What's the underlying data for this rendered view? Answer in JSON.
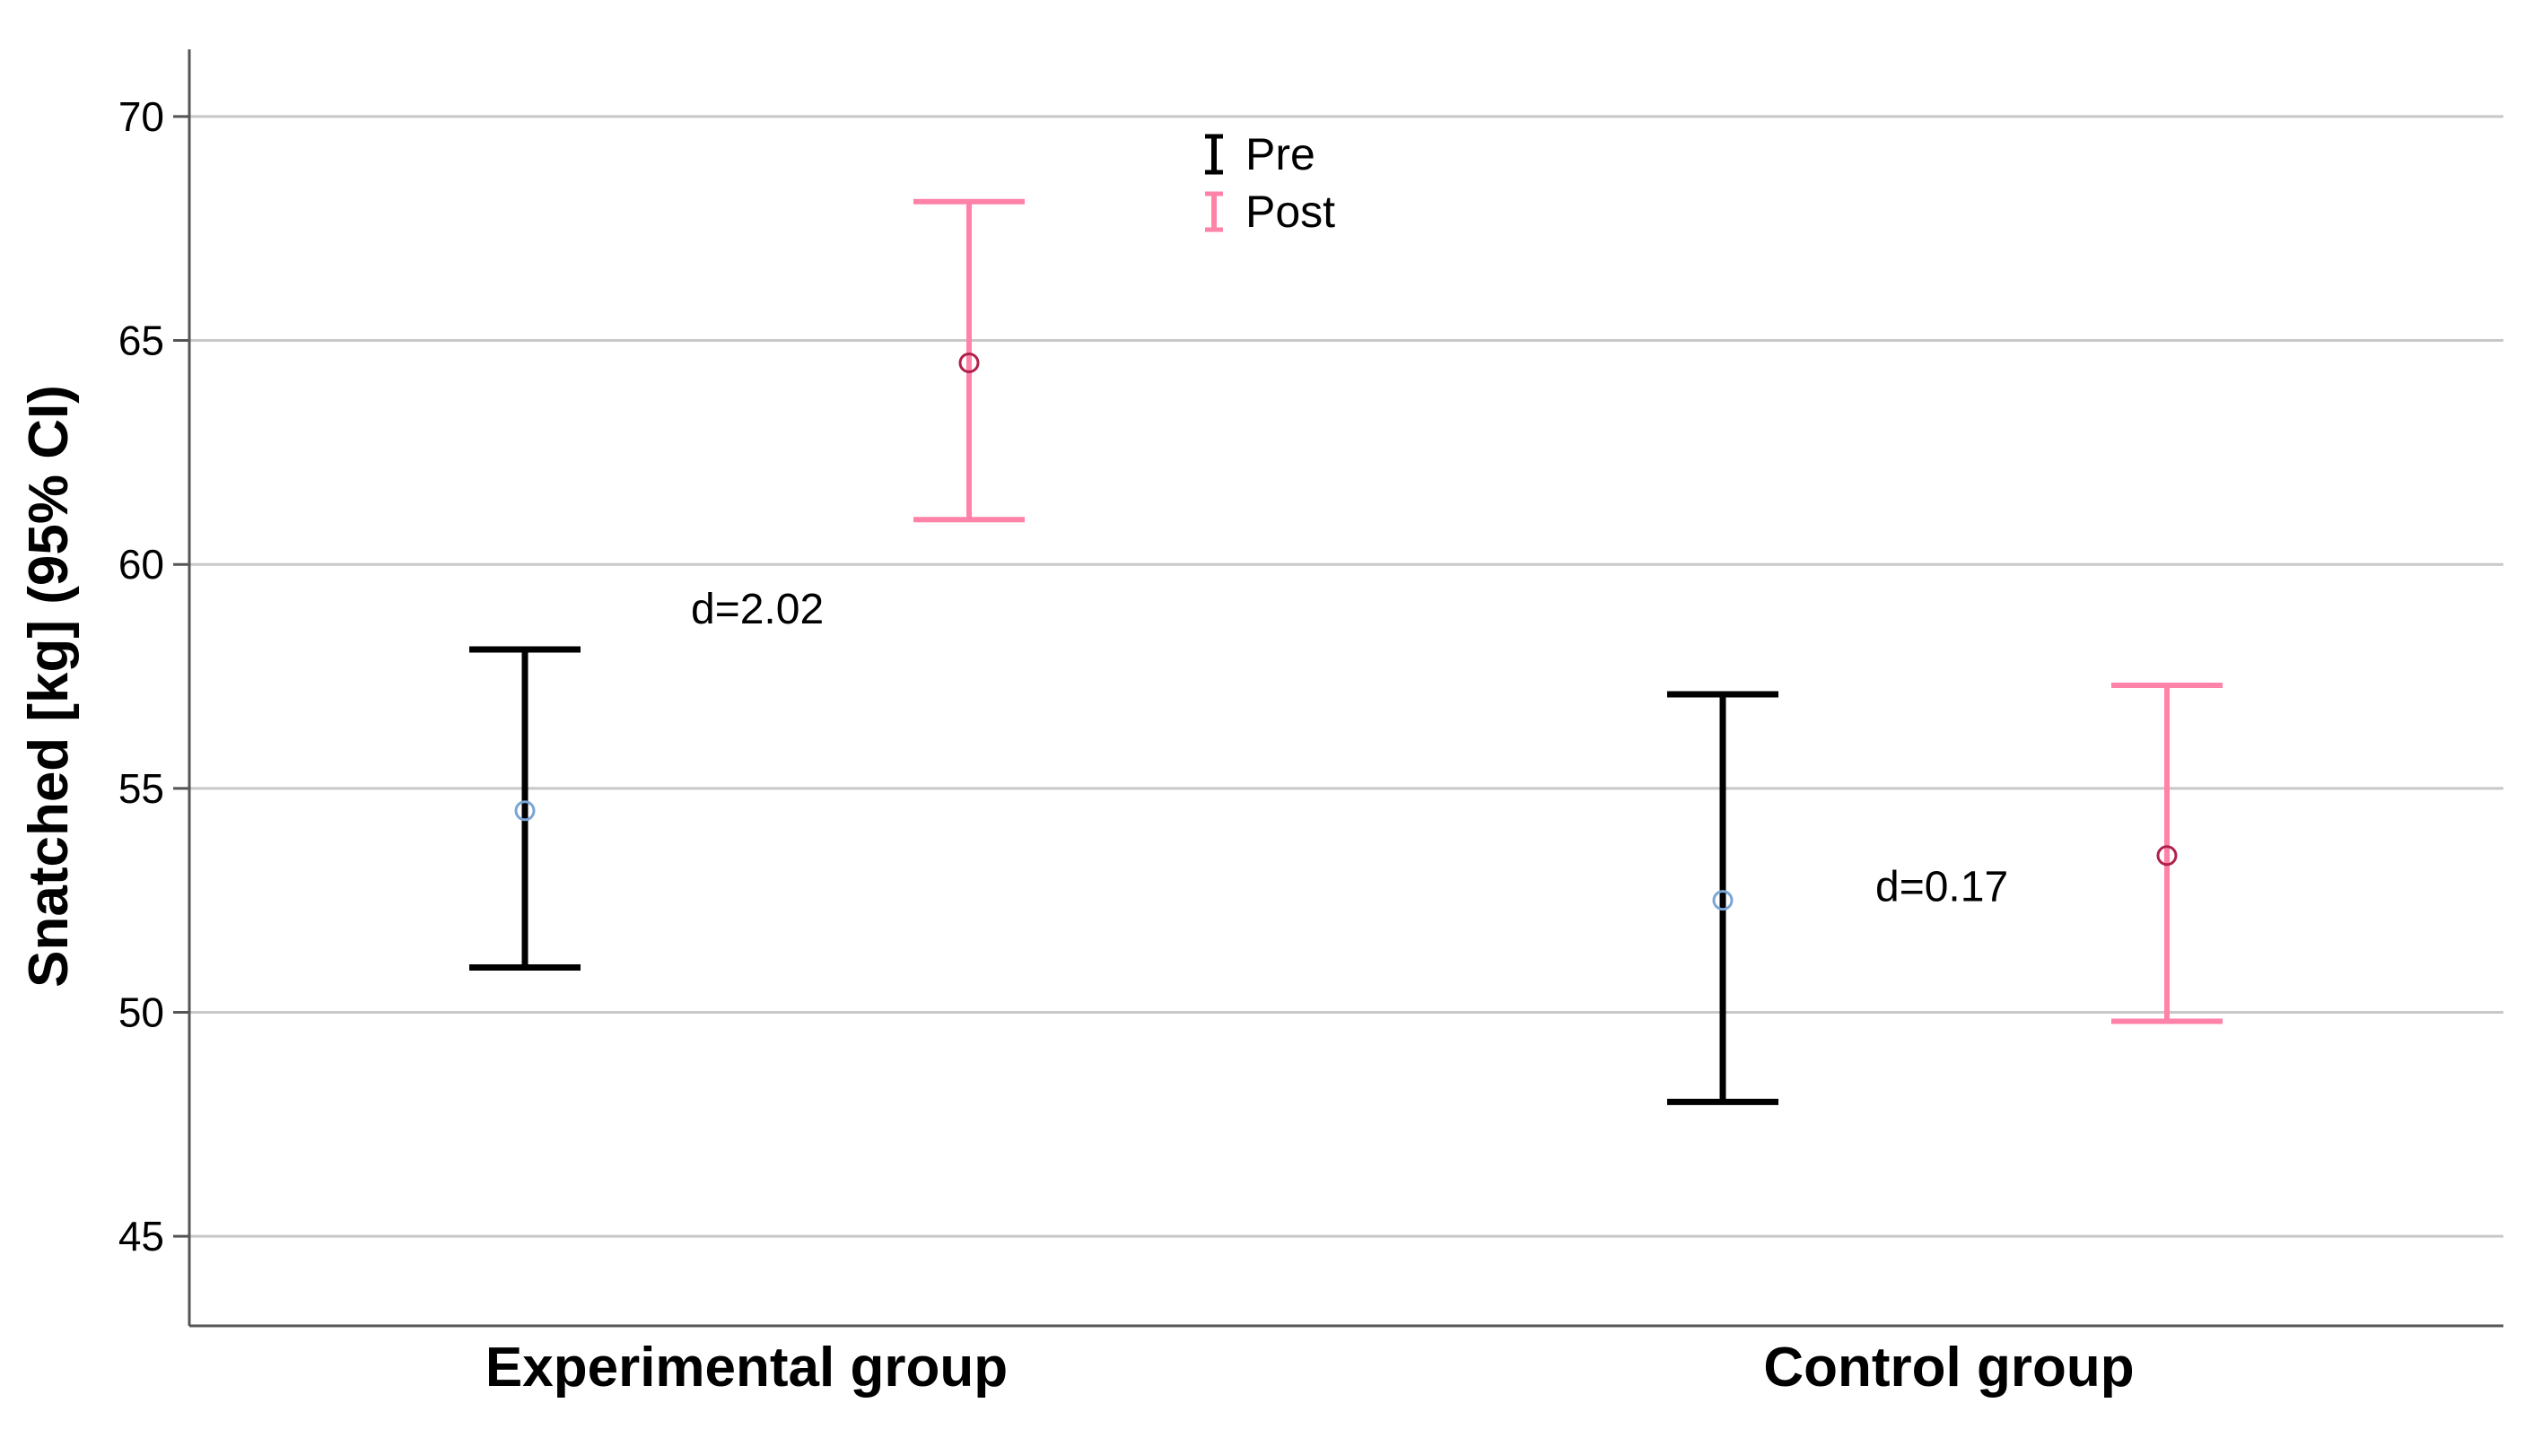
{
  "chart_data": {
    "type": "errorbar",
    "ylabel": "Snatched [kg] (95% CI)",
    "xlabel": "",
    "ylim": [
      43,
      71.5
    ],
    "yticks": [
      45,
      50,
      55,
      60,
      65,
      70
    ],
    "grid": "horizontal",
    "legend_position": "top-center",
    "categories": [
      "Experimental group",
      "Control group"
    ],
    "series": [
      {
        "name": "Pre",
        "color": "#000000",
        "marker_color": "#7aa6d6",
        "points": [
          {
            "category": "Experimental group",
            "mean": 54.5,
            "lower": 51.0,
            "upper": 58.1
          },
          {
            "category": "Control group",
            "mean": 52.5,
            "lower": 48.0,
            "upper": 57.1
          }
        ]
      },
      {
        "name": "Post",
        "color": "#ff82a9",
        "marker_color": "#b0204a",
        "points": [
          {
            "category": "Experimental group",
            "mean": 64.5,
            "lower": 61.0,
            "upper": 68.1
          },
          {
            "category": "Control group",
            "mean": 53.5,
            "lower": 49.8,
            "upper": 57.3
          }
        ]
      }
    ],
    "annotations": [
      {
        "text": "d=2.02",
        "category": "Experimental group",
        "y": 59.0
      },
      {
        "text": "d=0.17",
        "category": "Control group",
        "y": 52.8
      }
    ]
  }
}
